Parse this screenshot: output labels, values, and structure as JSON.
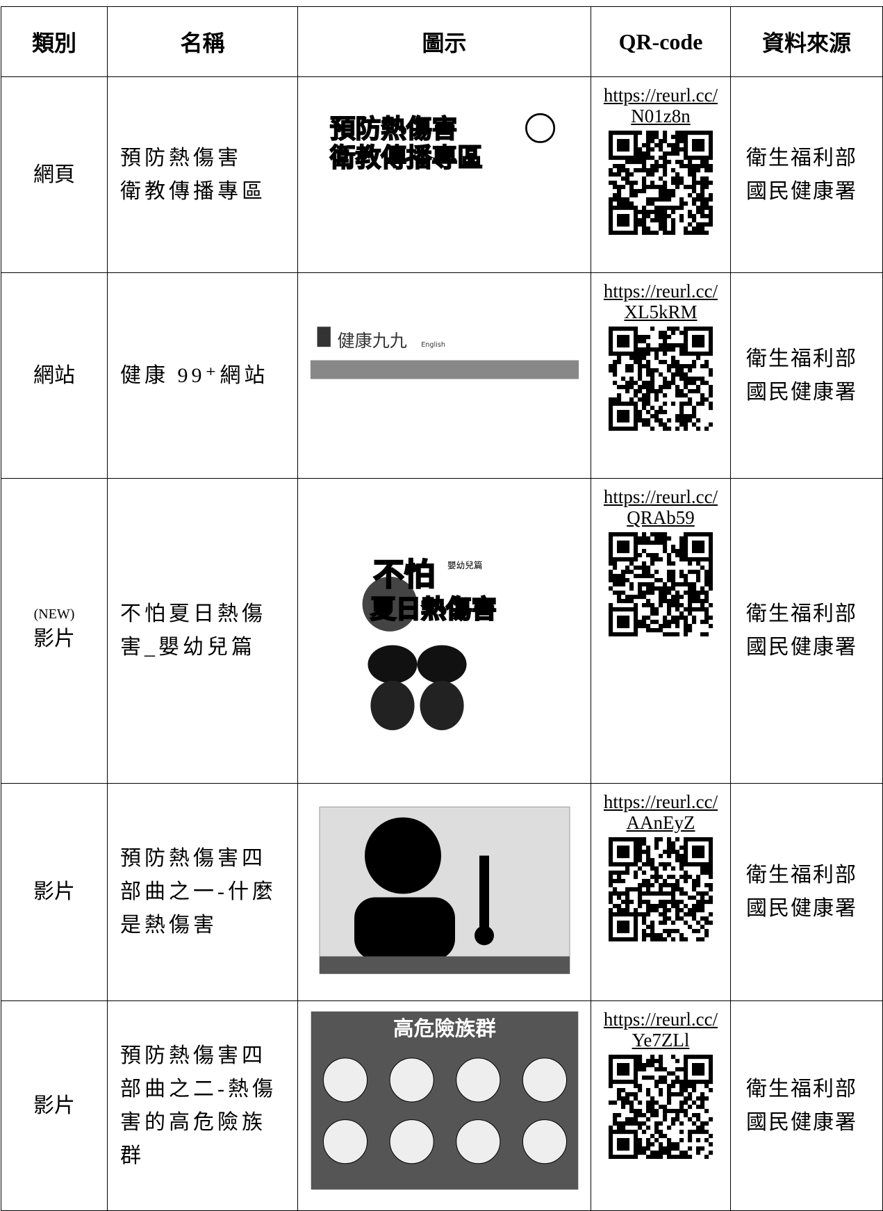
{
  "header": [
    "類別",
    "名稱",
    "圖示",
    "QR-code",
    "資料來源"
  ],
  "rows": [
    {
      "category": "網頁",
      "name": [
        "預防熱傷害",
        "衛教傳播專區"
      ],
      "image_text": [
        "預防熱傷害",
        "衛教傳播專區"
      ],
      "url": "https://reurl.cc/N01z8n",
      "source": [
        "衛生福利部",
        "國民健康署"
      ]
    },
    {
      "category": "網站",
      "name": [
        "健康 99⁺網站"
      ],
      "image_text": [
        "健康九九",
        "English"
      ],
      "url": "https://reurl.cc/XL5kRM",
      "source": [
        "衛生福利部",
        "國民健康署"
      ]
    },
    {
      "category_note": "(NEW)",
      "category": "影片",
      "name": [
        "不怕夏日熱傷",
        "害_嬰幼兒篇"
      ],
      "image_text": [
        "不怕",
        "夏日熱傷害",
        "嬰幼兒篇"
      ],
      "url": "https://reurl.cc/QRAb59",
      "source": [
        "衛生福利部",
        "國民健康署"
      ]
    },
    {
      "category": "影片",
      "name": [
        "預防熱傷害四",
        "部曲之一-什麼",
        "是熱傷害"
      ],
      "image_text": [],
      "url": "https://reurl.cc/AAnEyZ",
      "source": [
        "衛生福利部",
        "國民健康署"
      ]
    },
    {
      "category": "影片",
      "name": [
        "預防熱傷害四",
        "部曲之二-熱傷",
        "害的高危險族",
        "群"
      ],
      "image_text": [
        "高危險族群"
      ],
      "url": "https://reurl.cc/Ye7ZLl",
      "source": [
        "衛生福利部",
        "國民健康署"
      ]
    }
  ]
}
